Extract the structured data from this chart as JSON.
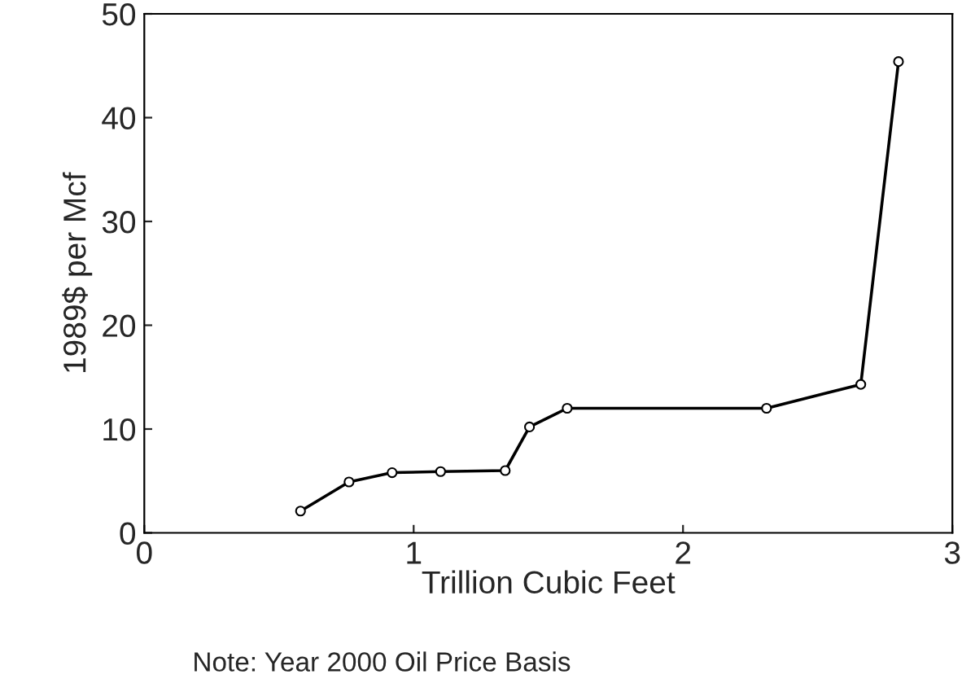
{
  "chart_data": {
    "type": "line",
    "xlabel": "Trillion Cubic Feet",
    "ylabel": "1989$ per Mcf",
    "annotations": [
      "Note: Year 2000 Oil Price Basis"
    ],
    "x": [
      0.58,
      0.76,
      0.92,
      1.1,
      1.34,
      1.43,
      1.57,
      2.31,
      2.66,
      2.8
    ],
    "series": [
      {
        "color": "#000000",
        "values": [
          2.1,
          4.9,
          5.8,
          5.9,
          6.0,
          10.2,
          12.0,
          12.0,
          14.3,
          45.4
        ]
      }
    ],
    "xlim": [
      0,
      3
    ],
    "xticks": [
      0,
      1,
      2,
      3
    ],
    "ylim": [
      0,
      50
    ],
    "yticks": [
      0,
      10,
      20,
      30,
      40,
      50
    ],
    "marker": "circle",
    "line_style": "solid",
    "grid": false,
    "legend": false
  }
}
